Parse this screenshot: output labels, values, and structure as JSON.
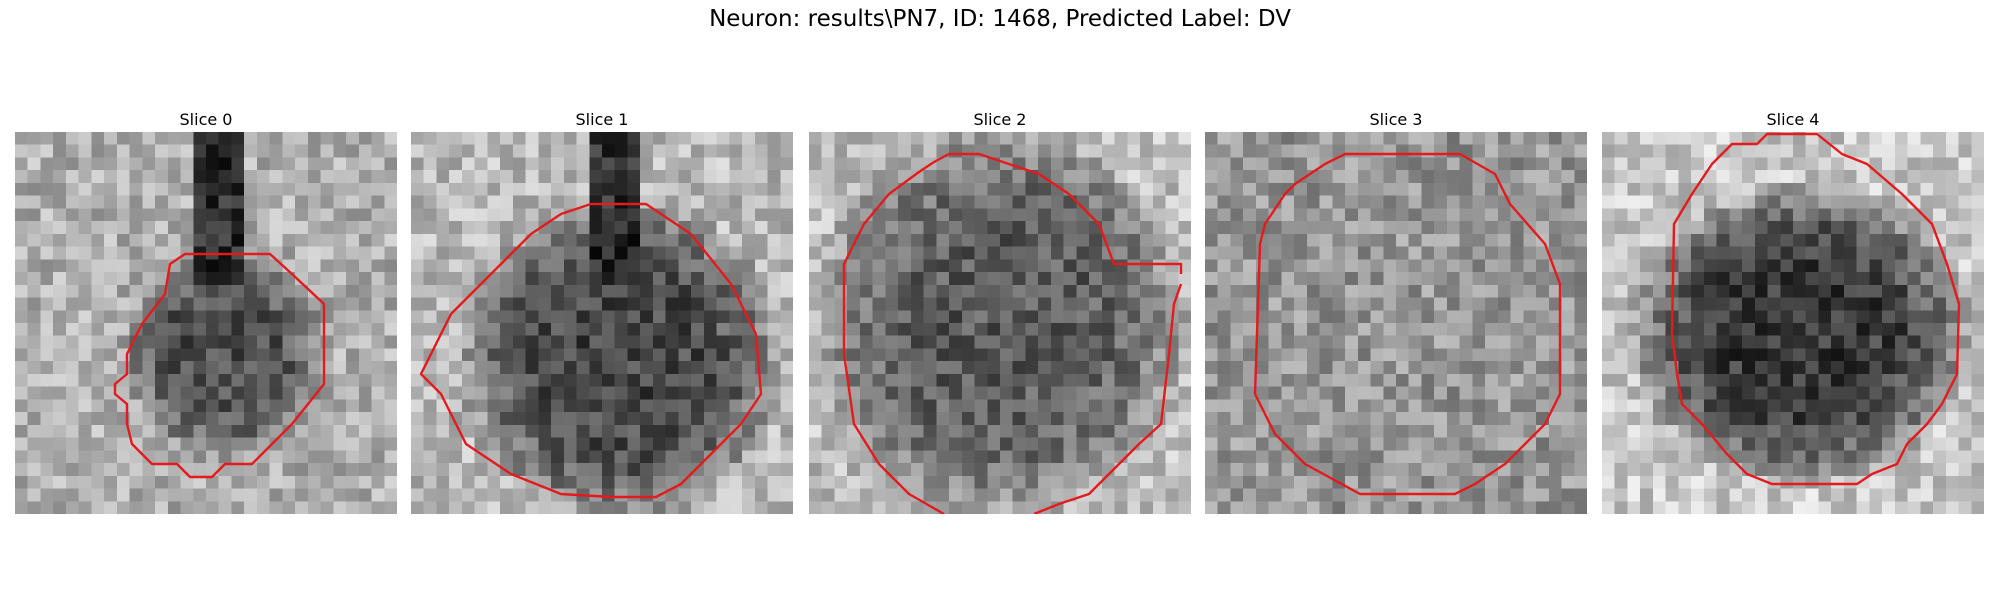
{
  "figure": {
    "title": "Neuron: results\\PN7, ID: 1468, Predicted Label: DV"
  },
  "style": {
    "contour_color": "#e41a1c",
    "background": "#ffffff"
  },
  "slices": [
    {
      "title": "Slice 0",
      "dark_region": "small round body with process extending upward",
      "contour_icon": "octagon-contour"
    },
    {
      "title": "Slice 1",
      "dark_region": "large round body",
      "contour_icon": "octagon-contour"
    },
    {
      "title": "Slice 2",
      "dark_region": "large round body filling frame",
      "contour_icon": "octagon-contour"
    },
    {
      "title": "Slice 3",
      "dark_region": "lighter round body",
      "contour_icon": "octagon-contour"
    },
    {
      "title": "Slice 4",
      "dark_region": "dark round body",
      "contour_icon": "octagon-contour"
    }
  ]
}
